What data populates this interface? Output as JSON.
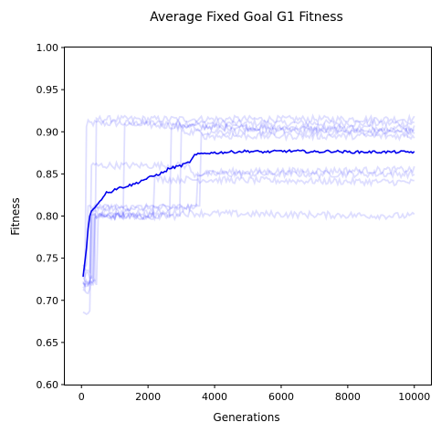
{
  "chart_data": {
    "type": "line",
    "title": "Average Fixed Goal G1 Fitness",
    "xlabel": "Generations",
    "ylabel": "Fitness",
    "xlim": [
      -500,
      10500
    ],
    "ylim": [
      0.6,
      1.0
    ],
    "x_ticks": [
      "0",
      "2000",
      "4000",
      "6000",
      "8000",
      "10000"
    ],
    "y_ticks": [
      "0.60",
      "0.65",
      "0.70",
      "0.75",
      "0.80",
      "0.85",
      "0.90",
      "0.95",
      "1.00"
    ],
    "grid": false,
    "colors": {
      "mean": "#0000ee",
      "runs": "#0000ff",
      "axis": "#000000"
    },
    "mean_series": {
      "x": [
        50,
        100,
        150,
        200,
        250,
        300,
        400,
        500,
        600,
        700,
        800,
        900,
        1000,
        1200,
        1400,
        1600,
        1800,
        2000,
        2200,
        2400,
        2500,
        2600,
        2800,
        3000,
        3200,
        3300,
        3400,
        3600,
        3800,
        4000,
        4500,
        5000,
        5500,
        6000,
        6500,
        7000,
        7500,
        8000,
        8500,
        9000,
        9500,
        10000
      ],
      "y": [
        0.728,
        0.745,
        0.762,
        0.785,
        0.8,
        0.806,
        0.81,
        0.815,
        0.82,
        0.826,
        0.829,
        0.829,
        0.832,
        0.834,
        0.836,
        0.838,
        0.842,
        0.845,
        0.848,
        0.851,
        0.852,
        0.856,
        0.858,
        0.86,
        0.863,
        0.866,
        0.872,
        0.874,
        0.875,
        0.875,
        0.876,
        0.877,
        0.876,
        0.877,
        0.877,
        0.876,
        0.877,
        0.876,
        0.876,
        0.876,
        0.876,
        0.876
      ]
    },
    "runs": [
      {
        "start": 0.715,
        "jumps": [
          [
            150,
            0.905
          ],
          [
            200,
            0.91
          ]
        ],
        "final": 0.91
      },
      {
        "start": 0.72,
        "jumps": [
          [
            450,
            0.915
          ]
        ],
        "final": 0.915
      },
      {
        "start": 0.72,
        "jumps": [
          [
            500,
            0.8
          ],
          [
            1300,
            0.91
          ]
        ],
        "final": 0.9
      },
      {
        "start": 0.71,
        "jumps": [
          [
            300,
            0.8
          ],
          [
            2700,
            0.905
          ]
        ],
        "final": 0.905
      },
      {
        "start": 0.725,
        "jumps": [
          [
            400,
            0.8
          ],
          [
            3000,
            0.9
          ]
        ],
        "final": 0.9
      },
      {
        "start": 0.735,
        "jumps": [
          [
            300,
            0.86
          ],
          [
            3300,
            0.85
          ]
        ],
        "final": 0.85
      },
      {
        "start": 0.72,
        "jumps": [
          [
            400,
            0.8
          ],
          [
            2200,
            0.845
          ]
        ],
        "final": 0.84
      },
      {
        "start": 0.74,
        "jumps": [
          [
            200,
            0.81
          ],
          [
            3500,
            0.85
          ]
        ],
        "final": 0.855
      },
      {
        "start": 0.685,
        "jumps": [
          [
            300,
            0.805
          ]
        ],
        "final": 0.8
      },
      {
        "start": 0.73,
        "jumps": [
          [
            350,
            0.81
          ],
          [
            3600,
            0.895
          ]
        ],
        "final": 0.895
      }
    ]
  }
}
